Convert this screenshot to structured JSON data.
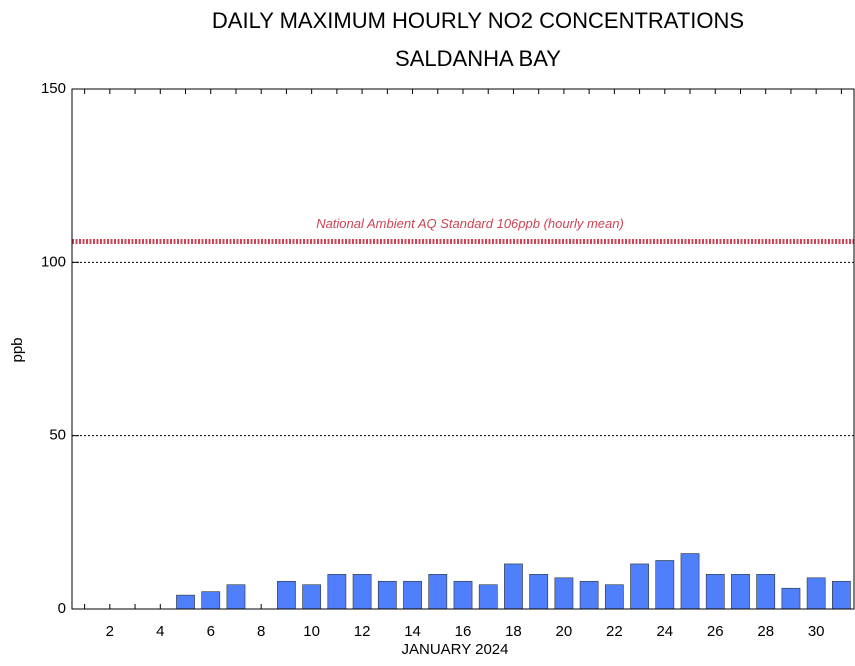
{
  "chart_data": {
    "type": "bar",
    "title": "DAILY MAXIMUM HOURLY NO2 CONCENTRATIONS",
    "subtitle": "SALDANHA BAY",
    "x_label": "JANUARY 2024",
    "y_label": "ppb",
    "categories": [
      null,
      "2",
      null,
      "4",
      null,
      "6",
      null,
      "8",
      null,
      "10",
      null,
      "12",
      null,
      "14",
      null,
      "16",
      null,
      "18",
      null,
      "20",
      null,
      "22",
      null,
      "24",
      null,
      "26",
      null,
      "28",
      null,
      "30",
      null
    ],
    "values": [
      null,
      null,
      null,
      null,
      4,
      5,
      7,
      null,
      8,
      7,
      10,
      10,
      8,
      8,
      10,
      8,
      7,
      13,
      10,
      9,
      8,
      7,
      13,
      14,
      16,
      10,
      10,
      10,
      6,
      9,
      8
    ],
    "color": "#4f7ffb",
    "ylim": [
      0,
      150
    ],
    "yticks": [
      0,
      50,
      100,
      150
    ],
    "grid": true,
    "standard": {
      "value": 106,
      "label": "National Ambient AQ Standard 106ppb (hourly mean)",
      "color": "#cc4455"
    }
  }
}
